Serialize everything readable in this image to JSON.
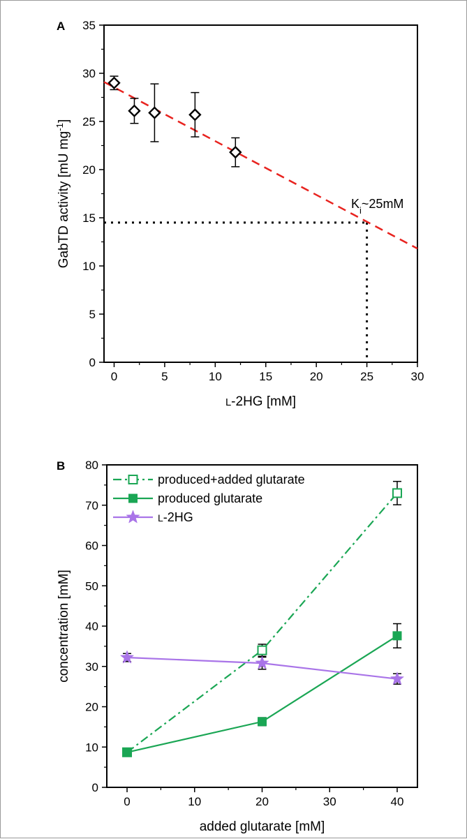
{
  "chart_data": [
    {
      "panel": "A",
      "type": "scatter",
      "xlabel": "L-2HG [mM]",
      "ylabel": "GabTD activity [mU mg-1]",
      "xlim": [
        -1,
        30
      ],
      "ylim": [
        0,
        35
      ],
      "x_ticks": [
        "0",
        "5",
        "10",
        "15",
        "20",
        "25",
        "30"
      ],
      "y_ticks": [
        "0",
        "5",
        "10",
        "15",
        "20",
        "25",
        "30",
        "35"
      ],
      "grid": false,
      "series": [
        {
          "marker": "open-diamond",
          "color": "#000000",
          "points": [
            {
              "x": 0,
              "y": 29.0,
              "err": 0.7
            },
            {
              "x": 2,
              "y": 26.1,
              "err": 1.3
            },
            {
              "x": 4,
              "y": 25.9,
              "err": 3.0
            },
            {
              "x": 8,
              "y": 25.7,
              "err": 2.3
            },
            {
              "x": 12,
              "y": 21.8,
              "err": 1.5
            }
          ]
        }
      ],
      "fit_line": {
        "x": [
          -1,
          30
        ],
        "y": [
          29.1,
          11.8
        ],
        "style": "dashed",
        "color": "#e8231f"
      },
      "guide_lines": {
        "y": 14.5,
        "x": 25,
        "style": "dotted"
      },
      "annotation": {
        "text_main": "K",
        "text_sub": "i",
        "text_rest": "~25mM"
      }
    },
    {
      "panel": "B",
      "type": "line",
      "xlabel": "added glutarate [mM]",
      "ylabel": "concentration [mM]",
      "xlim": [
        -3,
        43
      ],
      "ylim": [
        0,
        80
      ],
      "x_ticks": [
        "0",
        "10",
        "20",
        "30",
        "40"
      ],
      "y_ticks": [
        "0",
        "10",
        "20",
        "30",
        "40",
        "50",
        "60",
        "70",
        "80"
      ],
      "grid": false,
      "legend_position": "top-left",
      "x": [
        0,
        20,
        40
      ],
      "series": [
        {
          "name": "produced+added glutarate",
          "values": [
            8.7,
            34.0,
            73.0
          ],
          "errors": [
            0.8,
            1.5,
            2.9
          ],
          "color": "#1aa654",
          "marker": "open-square",
          "line": "dash-dot"
        },
        {
          "name": "produced glutarate",
          "values": [
            8.7,
            16.3,
            37.6
          ],
          "errors": [
            0.8,
            1.0,
            3.0
          ],
          "color": "#1aa654",
          "marker": "filled-square",
          "line": "solid"
        },
        {
          "name": "L-2HG",
          "values": [
            32.2,
            30.8,
            26.9
          ],
          "errors": [
            1.0,
            1.5,
            1.3
          ],
          "color": "#a974e8",
          "marker": "star",
          "line": "solid"
        }
      ]
    }
  ]
}
